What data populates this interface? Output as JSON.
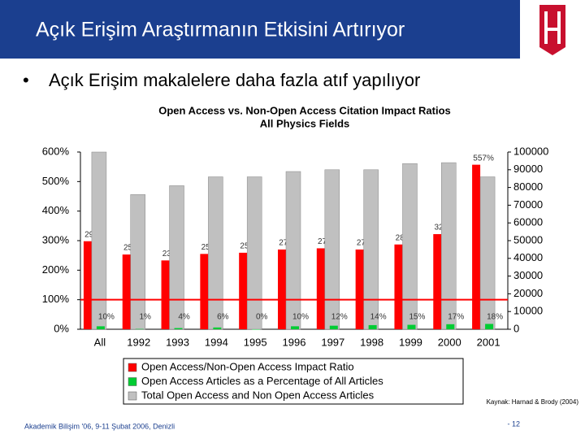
{
  "slide": {
    "title": "Açık Erişim Araştırmanın Etkisini Artırıyor",
    "bullet": "Açık Erişim makalelere daha fazla atıf yapılıyor",
    "source": "Kaynak: Harnad & Brody (2004)",
    "footer": "Akademik Bilişim '06, 9-11 Şubat 2006, Denizli",
    "page": "- 12"
  },
  "chart_data": {
    "type": "bar",
    "title": "Open Access vs. Non-Open Access Citation Impact Ratios",
    "subtitle": "All Physics Fields",
    "categories": [
      "All",
      "1992",
      "1993",
      "1994",
      "1995",
      "1996",
      "1997",
      "1998",
      "1999",
      "2000",
      "2001"
    ],
    "series": [
      {
        "name": "Open Access/Non-Open Access Impact Ratio",
        "color": "#ff0000",
        "values": [
          298,
          253,
          233,
          255,
          259,
          270,
          274,
          270,
          287,
          322,
          557
        ],
        "value_labels": [
          "298%",
          "253%",
          "233%",
          "255%",
          "259%",
          "270%",
          "274%",
          "270%",
          "287%",
          "322%",
          "557%"
        ]
      },
      {
        "name": "Open Access Articles as a Percentage of All Articles",
        "color": "#00cc33",
        "values": [
          10,
          1,
          4,
          6,
          0,
          10,
          12,
          14,
          15,
          17,
          18
        ],
        "value_labels": [
          "10%",
          "1%",
          "4%",
          "6%",
          "0%",
          "10%",
          "12%",
          "14%",
          "15%",
          "17%",
          "18%"
        ]
      },
      {
        "name": "Total Open Access and Non Open Access Articles",
        "color": "#c0c0c0",
        "axis": "y2",
        "values": [
          100000,
          76000,
          81000,
          86000,
          86000,
          89000,
          90000,
          90000,
          93500,
          94000,
          86000
        ]
      }
    ],
    "ylim": [
      0,
      600
    ],
    "yticks": [
      {
        "value": 0,
        "label": "0%"
      },
      {
        "value": 100,
        "label": "100%"
      },
      {
        "value": 200,
        "label": "200%"
      },
      {
        "value": 300,
        "label": "300%"
      },
      {
        "value": 400,
        "label": "400%"
      },
      {
        "value": 500,
        "label": "500%"
      },
      {
        "value": 600,
        "label": "600%"
      }
    ],
    "y2lim": [
      0,
      100000
    ],
    "y2ticks": [
      0,
      10000,
      20000,
      30000,
      40000,
      50000,
      60000,
      70000,
      80000,
      90000,
      100000
    ],
    "reference_line": {
      "value": 100,
      "color": "#ff0000"
    },
    "legend": "bottom"
  }
}
